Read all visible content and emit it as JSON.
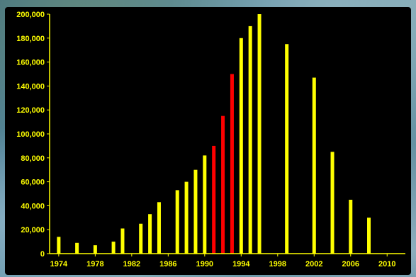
{
  "chart_data": {
    "type": "bar",
    "title": "",
    "xlabel": "",
    "ylabel": "",
    "ylim": [
      0,
      200000
    ],
    "xlim": [
      1973,
      2012
    ],
    "grid": false,
    "legend": "none",
    "yticks": [
      0,
      20000,
      40000,
      60000,
      80000,
      100000,
      120000,
      140000,
      160000,
      180000,
      200000
    ],
    "ytick_labels": [
      "0",
      "20,000",
      "40,000",
      "60,000",
      "80,000",
      "100,000",
      "120,000",
      "140,000",
      "160,000",
      "180,000",
      "200,000"
    ],
    "xticks": [
      1974,
      1978,
      1982,
      1986,
      1990,
      1994,
      1998,
      2002,
      2006,
      2010
    ],
    "xtick_labels": [
      "1974",
      "1978",
      "1982",
      "1986",
      "1990",
      "1994",
      "1998",
      "2002",
      "2006",
      "2010"
    ],
    "colors": {
      "default": "#ffff00",
      "highlight": "#ff0000",
      "axis": "#ffff00",
      "background": "#000000"
    },
    "bars": [
      {
        "x": 1974,
        "value": 14000,
        "highlight": false
      },
      {
        "x": 1976,
        "value": 9000,
        "highlight": false
      },
      {
        "x": 1978,
        "value": 7000,
        "highlight": false
      },
      {
        "x": 1980,
        "value": 10000,
        "highlight": false
      },
      {
        "x": 1981,
        "value": 21000,
        "highlight": false
      },
      {
        "x": 1983,
        "value": 25000,
        "highlight": false
      },
      {
        "x": 1984,
        "value": 33000,
        "highlight": false
      },
      {
        "x": 1985,
        "value": 43000,
        "highlight": false
      },
      {
        "x": 1987,
        "value": 53000,
        "highlight": false
      },
      {
        "x": 1988,
        "value": 60000,
        "highlight": false
      },
      {
        "x": 1989,
        "value": 70000,
        "highlight": false
      },
      {
        "x": 1990,
        "value": 82000,
        "highlight": false
      },
      {
        "x": 1991,
        "value": 90000,
        "highlight": true
      },
      {
        "x": 1992,
        "value": 115000,
        "highlight": true
      },
      {
        "x": 1993,
        "value": 150000,
        "highlight": true
      },
      {
        "x": 1994,
        "value": 180000,
        "highlight": false
      },
      {
        "x": 1995,
        "value": 190000,
        "highlight": false
      },
      {
        "x": 1996,
        "value": 200000,
        "highlight": false
      },
      {
        "x": 1999,
        "value": 175000,
        "highlight": false
      },
      {
        "x": 2002,
        "value": 147000,
        "highlight": false
      },
      {
        "x": 2004,
        "value": 85000,
        "highlight": false
      },
      {
        "x": 2006,
        "value": 45000,
        "highlight": false
      },
      {
        "x": 2008,
        "value": 30000,
        "highlight": false
      }
    ]
  }
}
